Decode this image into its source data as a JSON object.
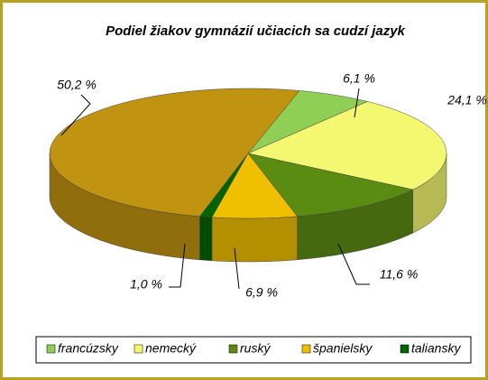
{
  "chart_data": {
    "type": "pie3d",
    "title": "Podiel  žiakov  gymnázií  učiacich sa cudzí  jazyk",
    "categories": [
      "francúzsky",
      "nemecký",
      "ruský",
      "španielsky",
      "taliansky",
      null
    ],
    "values": [
      6.1,
      24.1,
      11.6,
      6.9,
      1.0,
      50.2
    ],
    "value_labels": [
      "6,1 %",
      "24,1 %",
      "11,6 %",
      "6,9 %",
      "1,0 %",
      "50,2 %"
    ],
    "colors": [
      "#8fcf55",
      "#f4f870",
      "#5b8c12",
      "#f0c000",
      "#006400",
      "#c09310"
    ],
    "legend": "bottom"
  }
}
